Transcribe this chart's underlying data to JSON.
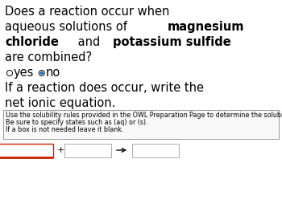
{
  "bg_color": "#ffffff",
  "text_color": "#000000",
  "line1": "Does a reaction occur when",
  "line2_plain": "aqueous solutions of ",
  "line2_bold": "magnesium",
  "line3_bold1": "chloride",
  "line3_plain": " and ",
  "line3_bold2": "potassium sulfide",
  "line4": "are combined?",
  "line5": "If a reaction does occur, write the",
  "line6": "net ionic equation.",
  "instruction_line1": "Use the solubility rules provided in the OWL Preparation Page to determine the solubility of compounds.",
  "instruction_line2": "Be sure to specify states such as (aq) or (s).",
  "instruction_line3": "If a box is not needed leave it blank.",
  "radio_dot_color": "#1a6bb5",
  "box_border_color": "#aaaaaa",
  "arrow_color": "#000000",
  "red_color": "#cc2200",
  "font_size_main": 10.5,
  "font_size_small": 5.8
}
